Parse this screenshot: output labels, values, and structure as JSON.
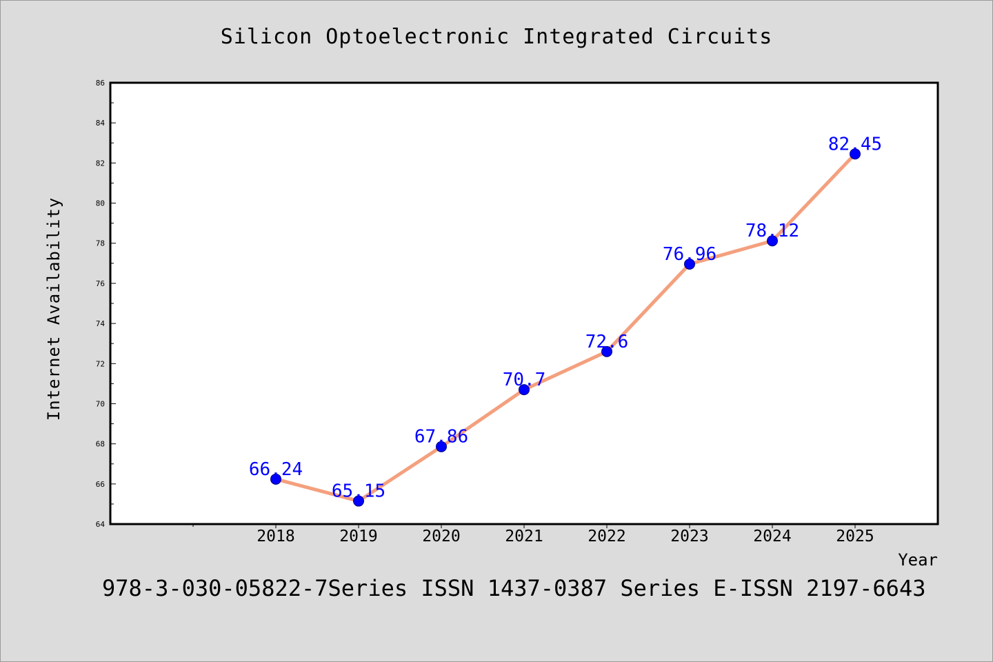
{
  "chart_data": {
    "type": "line",
    "title": "Silicon Optoelectronic Integrated Circuits",
    "xlabel": "Year",
    "ylabel": "Internet Availability",
    "footer": "978-3-030-05822-7Series ISSN 1437-0387 Series E-ISSN 2197-6643",
    "x": [
      "2018",
      "2019",
      "2020",
      "2021",
      "2022",
      "2023",
      "2024",
      "2025"
    ],
    "y": [
      66.24,
      65.15,
      67.86,
      70.7,
      72.6,
      76.96,
      78.12,
      82.45
    ],
    "data_labels": [
      "66.24",
      "65.15",
      "67.86",
      "70.7",
      "72.6",
      "76.96",
      "78.12",
      "82.45"
    ],
    "ylim": [
      64,
      86
    ],
    "yticks": [
      "64",
      "66",
      "68",
      "70",
      "72",
      "74",
      "76",
      "78",
      "80",
      "82",
      "84",
      "86"
    ],
    "grid": false,
    "legend": "none",
    "colors": {
      "line": "#f4a07e",
      "marker": "#0000ff",
      "marker_edge": "#000080",
      "data_label": "#0000ff",
      "background": "#dcdcdc",
      "plot_area": "#ffffff"
    }
  }
}
